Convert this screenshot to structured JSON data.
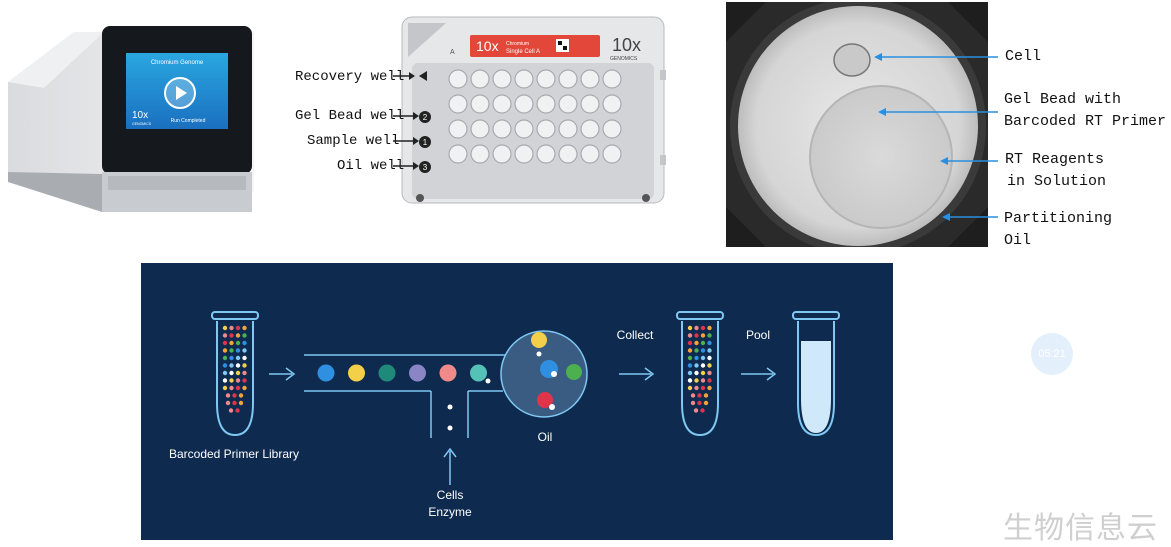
{
  "instrument": {
    "screen_title": "Chromium Genome",
    "logo_main": "10x",
    "logo_sub": "GENOMICS",
    "status": "Run Completed"
  },
  "chip": {
    "brand": "10x",
    "brand_sub": "GENOMICS",
    "label_line1": "Chromium",
    "label_line2": "Single Cell A",
    "row_letter": "A",
    "labels": {
      "recovery": "Recovery well",
      "gel_bead": "Gel Bead well",
      "sample": "Sample well",
      "oil": "Oil well"
    },
    "badges": {
      "gel_bead": "2",
      "sample": "1",
      "oil": "3"
    }
  },
  "micrograph": {
    "labels": {
      "cell": "Cell",
      "gel_bead_1": "Gel Bead with",
      "gel_bead_2": "Barcoded RT Primer",
      "rt_1": "RT Reagents",
      "rt_2": "in Solution",
      "oil_1": "Partitioning",
      "oil_2": "Oil"
    }
  },
  "workflow": {
    "library_label": "Barcoded Primer Library",
    "cells_label": "Cells",
    "enzyme_label": "Enzyme",
    "oil_label": "Oil",
    "collect_label": "Collect",
    "pool_label": "Pool"
  },
  "overlay": {
    "timer": "05:21",
    "watermark": "生物信息云"
  },
  "colors": {
    "panel_bg": "#0f2a4f",
    "arrow_blue": "#2a8fe0",
    "chip_red": "#e2473a",
    "bead_colors": [
      "#2f8fe0",
      "#f3cf4a",
      "#1f8a7a",
      "#8a86c6",
      "#f08a8a",
      "#55c2b8",
      "#4caf50"
    ]
  }
}
